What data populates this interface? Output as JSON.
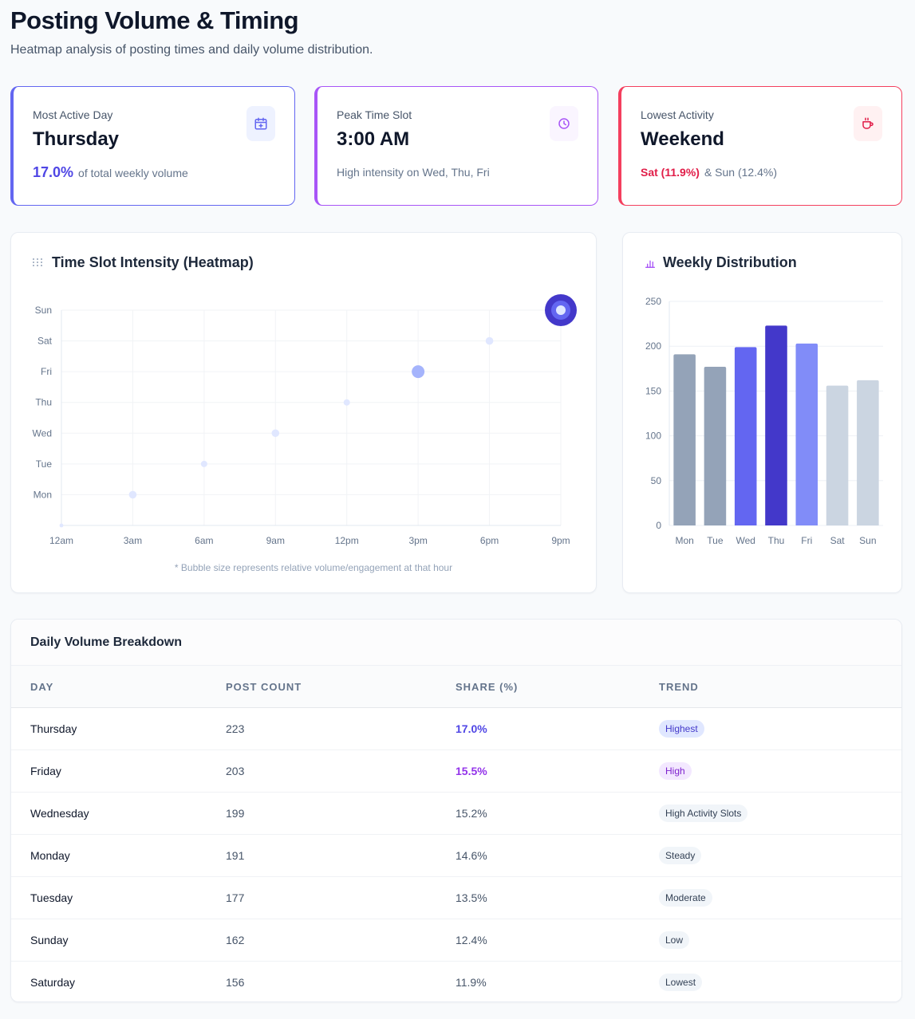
{
  "header": {
    "title": "Posting Volume & Timing",
    "subtitle": "Heatmap analysis of posting times and daily volume distribution."
  },
  "kpis": {
    "most_active": {
      "label": "Most Active Day",
      "value": "Thursday",
      "highlight": "17.0%",
      "note": "of total weekly volume",
      "icon": "calendar-icon"
    },
    "peak_slot": {
      "label": "Peak Time Slot",
      "value": "3:00 AM",
      "note": "High intensity on Wed, Thu, Fri",
      "icon": "clock-icon"
    },
    "lowest": {
      "label": "Lowest Activity",
      "value": "Weekend",
      "highlight": "Sat (11.9%)",
      "note": "& Sun (12.4%)",
      "icon": "coffee-icon"
    }
  },
  "heatmap": {
    "title": "Time Slot Intensity (Heatmap)",
    "footnote": "* Bubble size represents relative volume/engagement at that hour"
  },
  "distribution": {
    "title": "Weekly Distribution"
  },
  "table": {
    "title": "Daily Volume Breakdown",
    "columns": [
      "DAY",
      "POST COUNT",
      "SHARE (%)",
      "TREND"
    ],
    "rows": [
      {
        "day": "Thursday",
        "count": "223",
        "share": "17.0%",
        "trend": "Highest",
        "style": "indigo"
      },
      {
        "day": "Friday",
        "count": "203",
        "share": "15.5%",
        "trend": "High",
        "style": "purple"
      },
      {
        "day": "Wednesday",
        "count": "199",
        "share": "15.2%",
        "trend": "High Activity Slots",
        "style": "plain"
      },
      {
        "day": "Monday",
        "count": "191",
        "share": "14.6%",
        "trend": "Steady",
        "style": "plain"
      },
      {
        "day": "Tuesday",
        "count": "177",
        "share": "13.5%",
        "trend": "Moderate",
        "style": "plain"
      },
      {
        "day": "Sunday",
        "count": "162",
        "share": "12.4%",
        "trend": "Low",
        "style": "plain"
      },
      {
        "day": "Saturday",
        "count": "156",
        "share": "11.9%",
        "trend": "Lowest",
        "style": "plain"
      }
    ]
  },
  "colors": {
    "indigo": "#4f46e5",
    "purple": "#a855f7",
    "rose": "#e11d48"
  },
  "chart_data": [
    {
      "type": "scatter",
      "title": "Time Slot Intensity (Heatmap)",
      "x_categories": [
        "12am",
        "3am",
        "6am",
        "9am",
        "12pm",
        "3pm",
        "6pm",
        "9pm"
      ],
      "y_categories": [
        "Mon",
        "Tue",
        "Wed",
        "Thu",
        "Fri",
        "Sat",
        "Sun"
      ],
      "points": [
        {
          "x": 0,
          "y": -1,
          "size": 1.5,
          "color": "#e0e7ff"
        },
        {
          "x": 1,
          "y": 0,
          "size": 3,
          "color": "#e0e7ff"
        },
        {
          "x": 2,
          "y": 1,
          "size": 2.5,
          "color": "#e0e7ff"
        },
        {
          "x": 3,
          "y": 2,
          "size": 3,
          "color": "#e0e7ff"
        },
        {
          "x": 4,
          "y": 3,
          "size": 2.5,
          "color": "#e0e7ff"
        },
        {
          "x": 5,
          "y": 4,
          "size": 5,
          "color": "#a5b4fc"
        },
        {
          "x": 6,
          "y": 5,
          "size": 3,
          "color": "#e0e7ff"
        },
        {
          "x": 7,
          "y": 6,
          "size": 11,
          "color": "#4338ca"
        }
      ],
      "grid": true,
      "footnote": "* Bubble size represents relative volume/engagement at that hour"
    },
    {
      "type": "bar",
      "title": "Weekly Distribution",
      "categories": [
        "Mon",
        "Tue",
        "Wed",
        "Thu",
        "Fri",
        "Sat",
        "Sun"
      ],
      "values": [
        191,
        177,
        199,
        223,
        203,
        156,
        162
      ],
      "colors": [
        "#94a3b8",
        "#94a3b8",
        "#6366f1",
        "#4338ca",
        "#818cf8",
        "#cbd5e1",
        "#cbd5e1"
      ],
      "yticks": [
        0,
        50,
        100,
        150,
        200,
        250
      ],
      "ylim": [
        0,
        250
      ],
      "grid": true
    }
  ]
}
